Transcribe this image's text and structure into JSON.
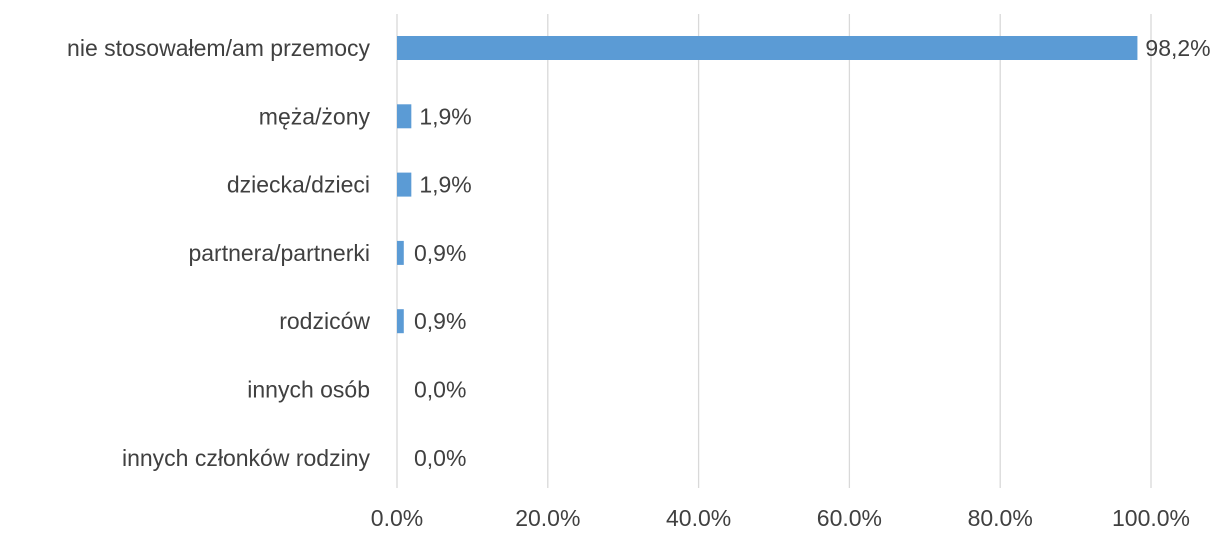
{
  "chart_data": {
    "type": "bar",
    "orientation": "horizontal",
    "categories": [
      "nie stosowałem/am przemocy",
      "męża/żony",
      "dziecka/dzieci",
      "partnera/partnerki",
      "rodziców",
      "innych osób",
      "innych członków rodziny"
    ],
    "values": [
      98.2,
      1.9,
      1.9,
      0.9,
      0.9,
      0.0,
      0.0
    ],
    "data_labels": [
      "98,2%",
      "1,9%",
      "1,9%",
      "0,9%",
      "0,9%",
      "0,0%",
      "0,0%"
    ],
    "x_ticks": [
      0,
      20,
      40,
      60,
      80,
      100
    ],
    "x_tick_labels": [
      "0.0%",
      "20.0%",
      "40.0%",
      "60.0%",
      "80.0%",
      "100.0%"
    ],
    "xlim": [
      0,
      100
    ],
    "grid": true,
    "legend": "none",
    "bar_color": "#5b9bd5",
    "title": "",
    "xlabel": "",
    "ylabel": ""
  }
}
